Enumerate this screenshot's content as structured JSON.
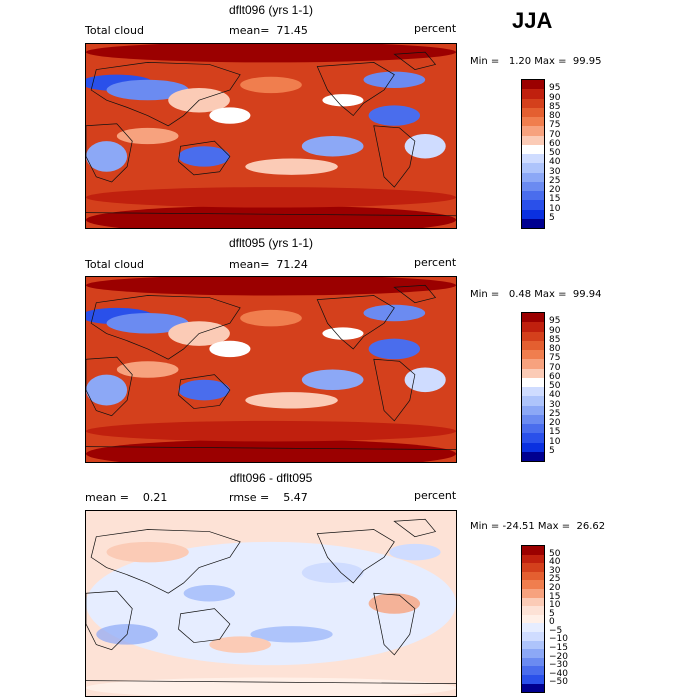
{
  "season": "JJA",
  "panels": [
    {
      "title": "dflt096 (yrs 1-1)",
      "left_label": "Total cloud",
      "mid_label": "mean=  71.45",
      "right_label": "percent",
      "minmax": "Min =   1.20 Max =  99.95",
      "colorbar_labels": [
        "95",
        "90",
        "85",
        "80",
        "75",
        "70",
        "60",
        "50",
        "40",
        "30",
        "25",
        "20",
        "15",
        "10",
        "5"
      ],
      "colors": [
        "#9b0000",
        "#c0200e",
        "#d4401c",
        "#e45f30",
        "#f07e4e",
        "#f7a27e",
        "#fbcbb6",
        "#ffffff",
        "#cfdcff",
        "#aec4fb",
        "#8ca8f6",
        "#6b8bf1",
        "#4a6ded",
        "#2a50ea",
        "#0a30e0",
        "#000090"
      ]
    },
    {
      "title": "dflt095 (yrs 1-1)",
      "left_label": "Total cloud",
      "mid_label": "mean=  71.24",
      "right_label": "percent",
      "minmax": "Min =   0.48 Max =  99.94",
      "colorbar_labels": [
        "95",
        "90",
        "85",
        "80",
        "75",
        "70",
        "60",
        "50",
        "40",
        "30",
        "25",
        "20",
        "15",
        "10",
        "5"
      ],
      "colors": [
        "#9b0000",
        "#c0200e",
        "#d4401c",
        "#e45f30",
        "#f07e4e",
        "#f7a27e",
        "#fbcbb6",
        "#ffffff",
        "#cfdcff",
        "#aec4fb",
        "#8ca8f6",
        "#6b8bf1",
        "#4a6ded",
        "#2a50ea",
        "#0a30e0",
        "#000090"
      ]
    },
    {
      "title": "dflt096 - dflt095",
      "left_label": "mean =    0.21",
      "mid_label": "rmse =    5.47",
      "right_label": "percent",
      "minmax": "Min = -24.51 Max =  26.62",
      "colorbar_labels": [
        "50",
        "40",
        "30",
        "25",
        "20",
        "15",
        "10",
        "5",
        "0",
        "−5",
        "−10",
        "−15",
        "−20",
        "−30",
        "−40",
        "−50"
      ],
      "colors": [
        "#9b0000",
        "#c0200e",
        "#d4401c",
        "#e45f30",
        "#f07e4e",
        "#f7a27e",
        "#fbcbb6",
        "#fde2d6",
        "#fff0e8",
        "#e6edff",
        "#cfdcff",
        "#aec4fb",
        "#8ca8f6",
        "#6b8bf1",
        "#4a6ded",
        "#2a50ea",
        "#000090"
      ]
    }
  ]
}
